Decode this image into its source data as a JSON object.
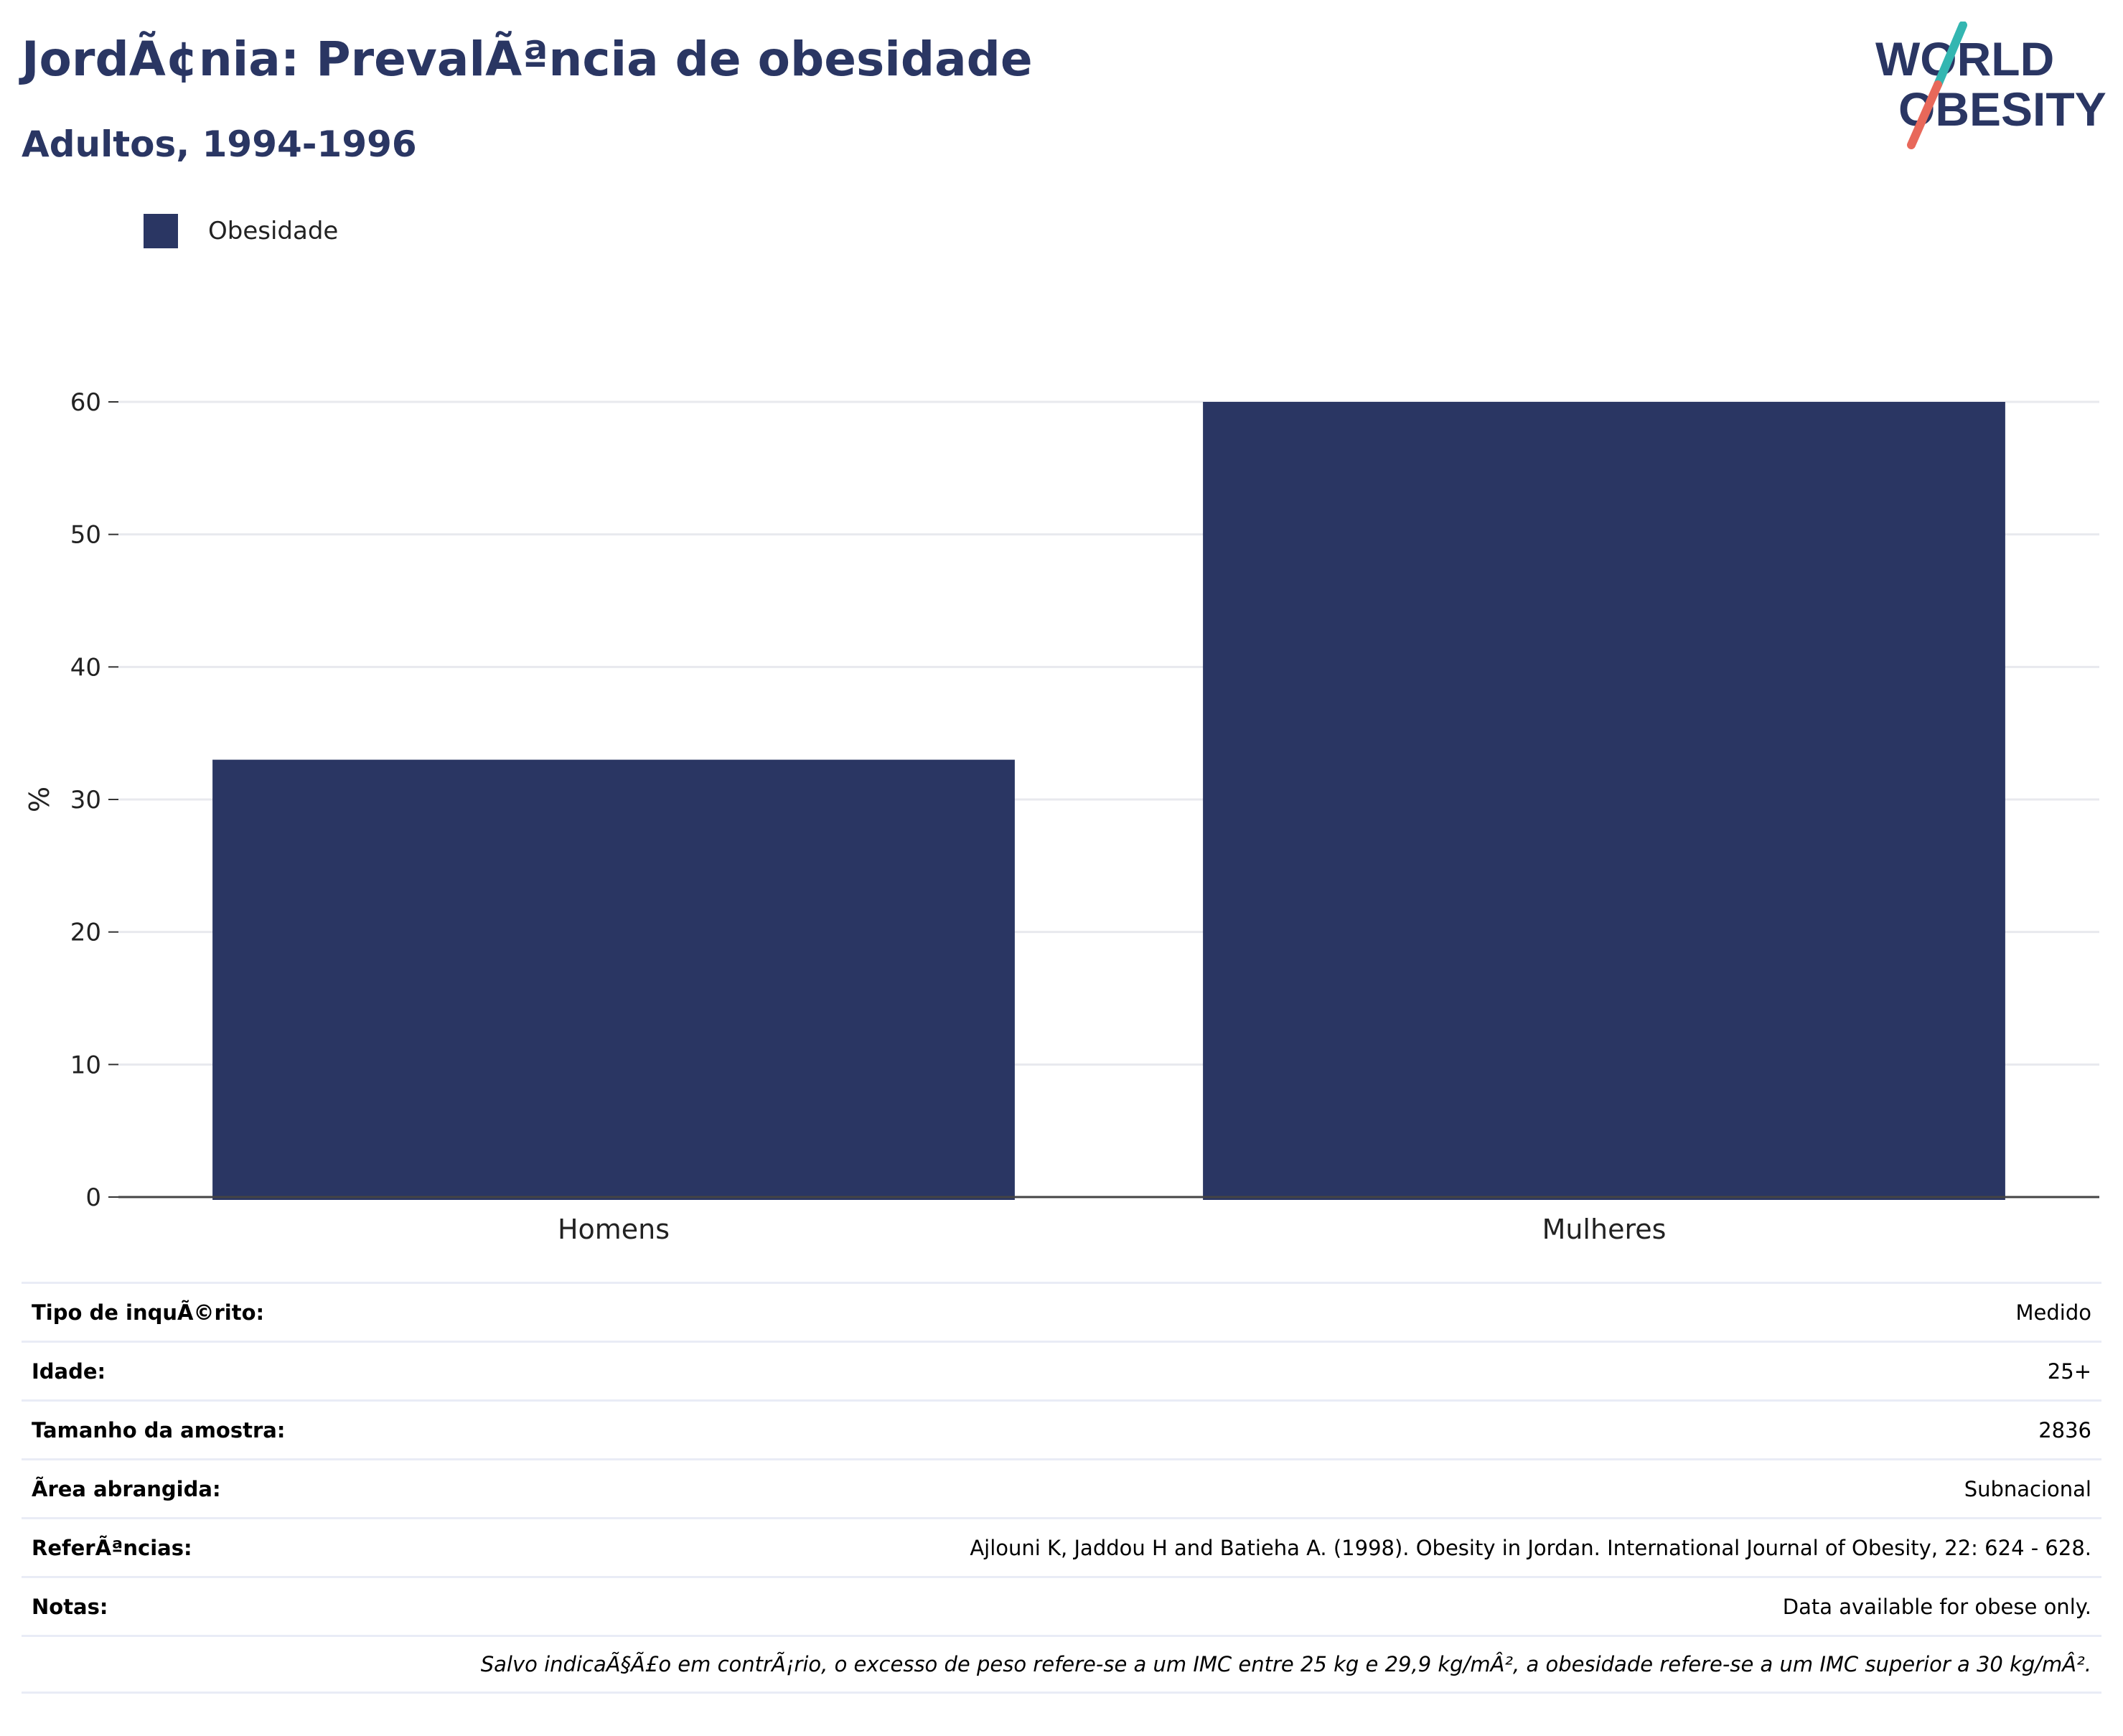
{
  "header": {
    "title": "JordÃ¢nia: PrevalÃªncia de obesidade",
    "subtitle": "Adultos, 1994-1996"
  },
  "logo": {
    "line1": "WORLD",
    "line2": "OBESITY",
    "colors": {
      "text": "#2a3663",
      "slash_top": "#33b6b1",
      "slash_bottom": "#e8685a"
    }
  },
  "legend": {
    "items": [
      {
        "label": "Obesidade",
        "color": "#2a3663"
      }
    ]
  },
  "chart_data": {
    "type": "bar",
    "categories": [
      "Homens",
      "Mulheres"
    ],
    "series": [
      {
        "name": "Obesidade",
        "values": [
          33,
          60
        ],
        "color": "#2a3663"
      }
    ],
    "ylabel": "%",
    "ylim": [
      0,
      60
    ],
    "yticks": [
      0,
      10,
      20,
      30,
      40,
      50,
      60
    ],
    "grid": true,
    "legend_position": "top-left"
  },
  "info": {
    "rows": [
      {
        "label": "Tipo de inquÃ©rito:",
        "value": "Medido"
      },
      {
        "label": "Idade:",
        "value": "25+"
      },
      {
        "label": "Tamanho da amostra:",
        "value": "2836"
      },
      {
        "label": "Ãrea abrangida:",
        "value": "Subnacional"
      },
      {
        "label": "ReferÃªncias:",
        "value": "Ajlouni K, Jaddou H and Batieha A. (1998). Obesity in Jordan. International Journal of Obesity, 22: 624 - 628."
      },
      {
        "label": "Notas:",
        "value": "Data available for obese only."
      }
    ],
    "footnote": "Salvo indicaÃ§Ã£o em contrÃ¡rio, o excesso de peso refere-se a um IMC entre 25 kg e 29,9 kg/mÂ², a obesidade refere-se a um IMC superior a 30 kg/mÂ²."
  }
}
